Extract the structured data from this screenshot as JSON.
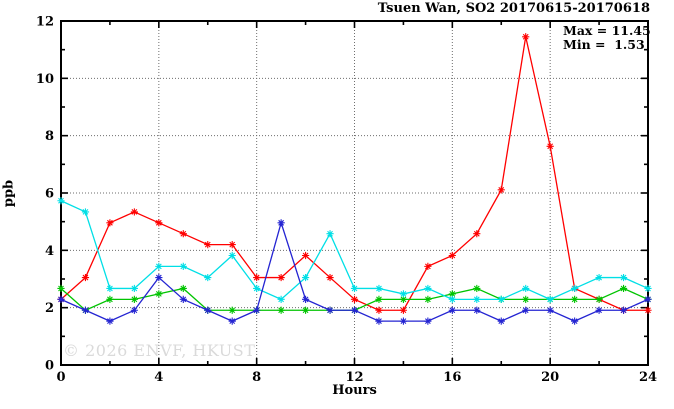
{
  "header": {
    "title": "Tsuen Wan, SO2 20170615-20170618"
  },
  "annotation": {
    "max_label": "Max = 11.45",
    "min_label": "Min =  1.53"
  },
  "watermark": "© 2026 ENVF, HKUST",
  "chart_data": {
    "type": "line",
    "title": "Tsuen Wan, SO2 20170615-20170618",
    "xlabel": "Hours",
    "ylabel": "ppb",
    "xlim": [
      0,
      24
    ],
    "ylim": [
      0,
      12
    ],
    "xticks_major": [
      0,
      4,
      8,
      12,
      16,
      20,
      24
    ],
    "xticks_minor": [
      2,
      6,
      10,
      14,
      18,
      22
    ],
    "yticks_major": [
      0,
      2,
      4,
      6,
      8,
      10,
      12
    ],
    "yticks_minor": [
      1,
      3,
      5,
      7,
      9,
      11
    ],
    "grid_x": [
      4,
      8,
      12,
      16,
      20
    ],
    "grid_y": [
      2,
      4,
      6,
      8,
      10
    ],
    "grid": "dotted",
    "legend_position": "none",
    "marker": "asterisk",
    "stats": {
      "max": 11.45,
      "min": 1.53
    },
    "x": [
      0,
      1,
      2,
      3,
      4,
      5,
      6,
      7,
      8,
      9,
      10,
      11,
      12,
      13,
      14,
      15,
      16,
      17,
      18,
      19,
      20,
      21,
      22,
      23,
      24
    ],
    "series": [
      {
        "name": "series-red",
        "color": "#ff0000",
        "values": [
          2.29,
          3.05,
          4.96,
          5.34,
          4.96,
          4.58,
          4.2,
          4.2,
          3.05,
          3.05,
          3.82,
          3.05,
          2.29,
          1.91,
          1.91,
          3.44,
          3.82,
          4.58,
          6.11,
          11.45,
          7.63,
          2.67,
          2.29,
          1.91,
          1.91
        ]
      },
      {
        "name": "series-green",
        "color": "#00c400",
        "values": [
          2.67,
          1.91,
          2.29,
          2.29,
          2.48,
          2.67,
          1.91,
          1.91,
          1.91,
          1.91,
          1.91,
          1.91,
          1.91,
          2.29,
          2.29,
          2.29,
          2.48,
          2.67,
          2.29,
          2.29,
          2.29,
          2.29,
          2.29,
          2.67,
          2.29
        ]
      },
      {
        "name": "series-cyan",
        "color": "#00dfe6",
        "values": [
          5.73,
          5.34,
          2.67,
          2.67,
          3.44,
          3.44,
          3.05,
          3.82,
          2.67,
          2.29,
          3.05,
          4.58,
          2.67,
          2.67,
          2.48,
          2.67,
          2.29,
          2.29,
          2.29,
          2.67,
          2.29,
          2.67,
          3.05,
          3.05,
          2.67
        ]
      },
      {
        "name": "series-blue",
        "color": "#2424d2",
        "values": [
          2.29,
          1.91,
          1.53,
          1.91,
          3.05,
          2.29,
          1.91,
          1.53,
          1.91,
          4.96,
          2.29,
          1.91,
          1.91,
          1.53,
          1.53,
          1.53,
          1.91,
          1.91,
          1.53,
          1.91,
          1.91,
          1.53,
          1.91,
          1.91,
          2.29
        ]
      }
    ]
  }
}
